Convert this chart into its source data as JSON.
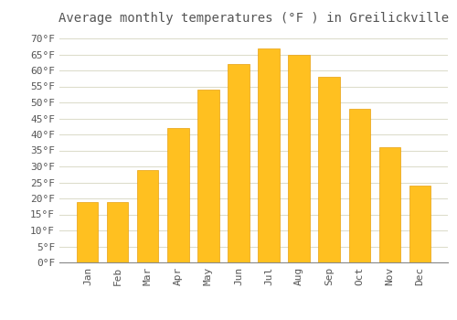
{
  "title": "Average monthly temperatures (°F ) in Greilickville",
  "months": [
    "Jan",
    "Feb",
    "Mar",
    "Apr",
    "May",
    "Jun",
    "Jul",
    "Aug",
    "Sep",
    "Oct",
    "Nov",
    "Dec"
  ],
  "values": [
    19,
    19,
    29,
    42,
    54,
    62,
    67,
    65,
    58,
    48,
    36,
    24
  ],
  "bar_color": "#FFC020",
  "bar_edge_color": "#E8A010",
  "background_color": "#FFFFFF",
  "grid_color": "#DDDDCC",
  "text_color": "#555555",
  "ylim": [
    0,
    72
  ],
  "yticks": [
    0,
    5,
    10,
    15,
    20,
    25,
    30,
    35,
    40,
    45,
    50,
    55,
    60,
    65,
    70
  ],
  "title_fontsize": 10,
  "tick_fontsize": 8,
  "font_family": "monospace"
}
